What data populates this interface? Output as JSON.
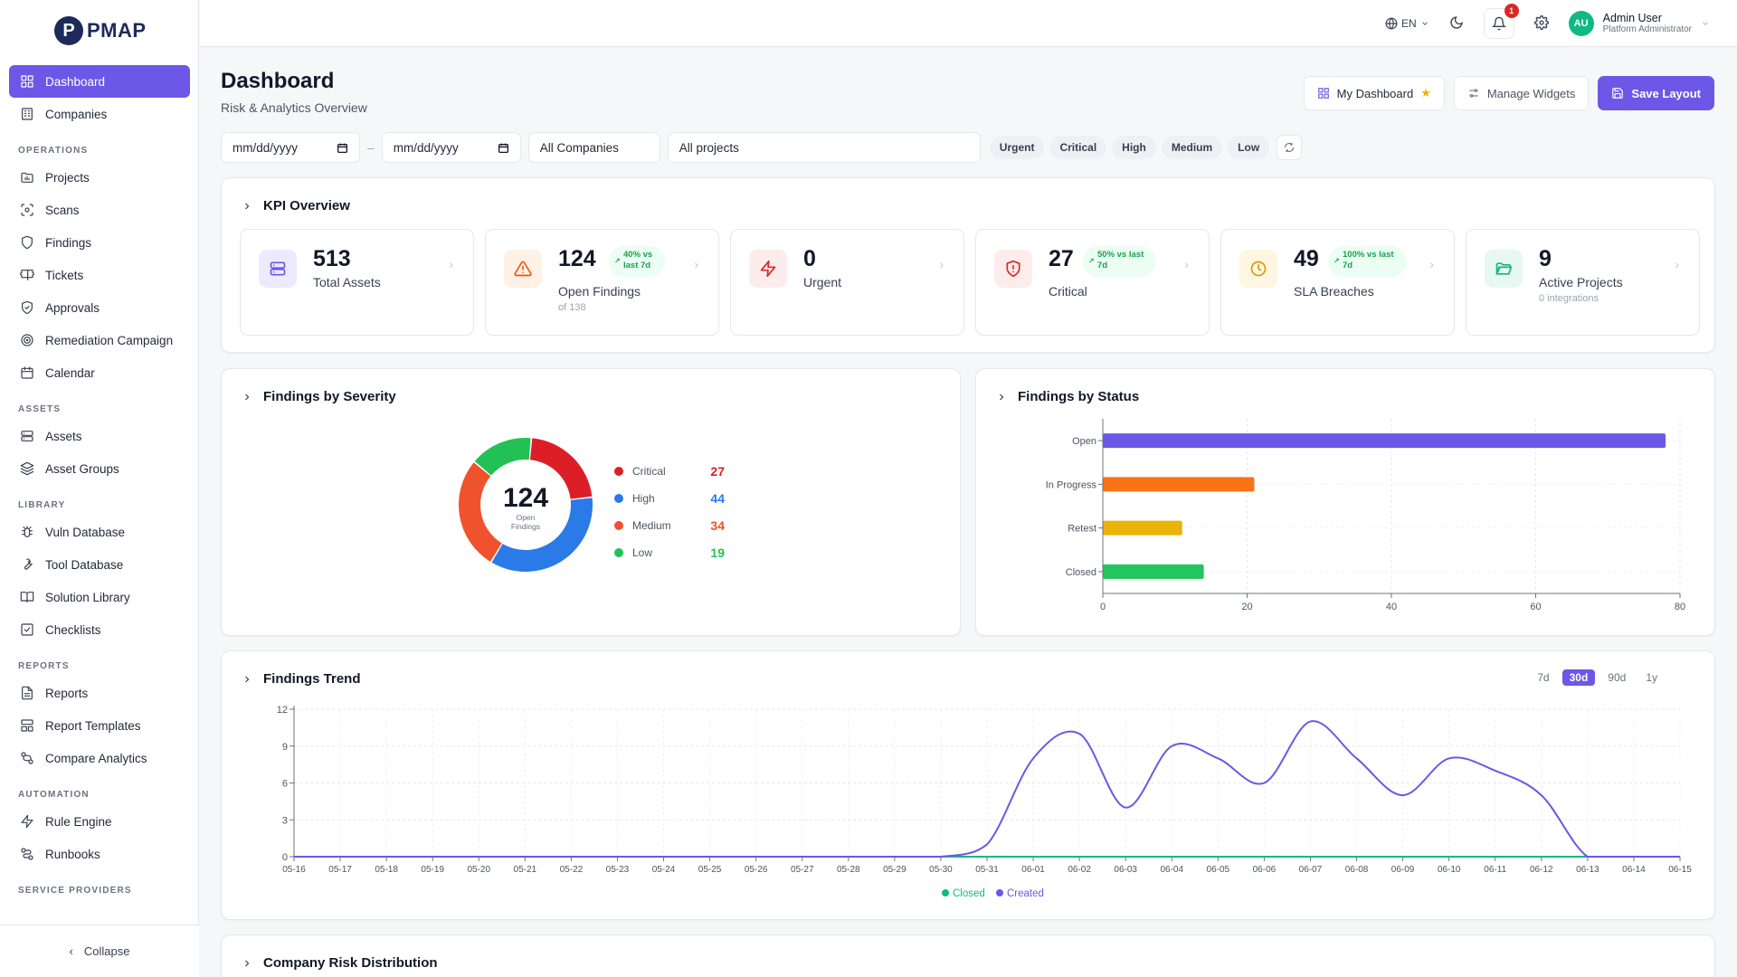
{
  "app": {
    "logo_letter": "P",
    "logo_text": "PMAP"
  },
  "sidebar": {
    "items": [
      {
        "label": "Dashboard",
        "icon": "grid-icon",
        "active": true
      },
      {
        "label": "Companies",
        "icon": "building-icon"
      }
    ],
    "sections": [
      {
        "title": "OPERATIONS",
        "items": [
          {
            "label": "Projects",
            "icon": "folder-chart-icon"
          },
          {
            "label": "Scans",
            "icon": "scan-icon"
          },
          {
            "label": "Findings",
            "icon": "shield-icon"
          },
          {
            "label": "Tickets",
            "icon": "ticket-icon"
          },
          {
            "label": "Approvals",
            "icon": "shield-check-icon"
          },
          {
            "label": "Remediation Campaign",
            "icon": "target-icon"
          },
          {
            "label": "Calendar",
            "icon": "calendar-icon"
          }
        ]
      },
      {
        "title": "ASSETS",
        "items": [
          {
            "label": "Assets",
            "icon": "server-icon"
          },
          {
            "label": "Asset Groups",
            "icon": "layers-icon"
          }
        ]
      },
      {
        "title": "LIBRARY",
        "items": [
          {
            "label": "Vuln Database",
            "icon": "bug-icon"
          },
          {
            "label": "Tool Database",
            "icon": "wrench-icon"
          },
          {
            "label": "Solution Library",
            "icon": "book-icon"
          },
          {
            "label": "Checklists",
            "icon": "checklist-icon"
          }
        ]
      },
      {
        "title": "REPORTS",
        "items": [
          {
            "label": "Reports",
            "icon": "report-icon"
          },
          {
            "label": "Report Templates",
            "icon": "template-icon"
          },
          {
            "label": "Compare Analytics",
            "icon": "compare-icon"
          }
        ]
      },
      {
        "title": "AUTOMATION",
        "items": [
          {
            "label": "Rule Engine",
            "icon": "bolt-icon"
          },
          {
            "label": "Runbooks",
            "icon": "workflow-icon"
          }
        ]
      },
      {
        "title": "SERVICE PROVIDERS",
        "items": []
      }
    ],
    "collapse_label": "Collapse"
  },
  "topbar": {
    "language": "EN",
    "notification_count": "1",
    "user_initials": "AU",
    "user_name": "Admin User",
    "user_role": "Platform Administrator"
  },
  "header": {
    "title": "Dashboard",
    "subtitle": "Risk & Analytics Overview",
    "buttons": {
      "my_dashboard": "My Dashboard",
      "manage_widgets": "Manage Widgets",
      "save_layout": "Save Layout"
    }
  },
  "filters": {
    "date_from": "mm/dd/yyyy",
    "date_to": "mm/dd/yyyy",
    "company": "All Companies",
    "project": "All projects",
    "severity_chips": [
      "Urgent",
      "Critical",
      "High",
      "Medium",
      "Low"
    ]
  },
  "kpi": {
    "title": "KPI Overview",
    "cards": [
      {
        "value": "513",
        "label": "Total Assets",
        "sub": "",
        "trend": "",
        "icon": "server-icon",
        "icon_bg": "#eeeafd",
        "icon_color": "#6d57e6"
      },
      {
        "value": "124",
        "label": "Open Findings",
        "sub": "of 138",
        "trend": "40% vs last 7d",
        "trend_l1": "40% vs",
        "trend_l2": "last 7d",
        "icon": "warning-icon",
        "icon_bg": "#fff1e6",
        "icon_color": "#ea580c"
      },
      {
        "value": "0",
        "label": "Urgent",
        "sub": "",
        "trend": "",
        "icon": "bolt-icon",
        "icon_bg": "#fdecec",
        "icon_color": "#dc2626"
      },
      {
        "value": "27",
        "label": "Critical",
        "sub": "",
        "trend": "50% vs last 7d",
        "trend_l1": "50% vs last",
        "trend_l2": "7d",
        "icon": "shield-alert-icon",
        "icon_bg": "#fdecec",
        "icon_color": "#dc2626"
      },
      {
        "value": "49",
        "label": "SLA Breaches",
        "sub": "",
        "trend": "100% vs last 7d",
        "trend_l1": "100% vs last",
        "trend_l2": "7d",
        "icon": "clock-icon",
        "icon_bg": "#fef6e1",
        "icon_color": "#d99a06"
      },
      {
        "value": "9",
        "label": "Active Projects",
        "sub": "0 integrations",
        "trend": "",
        "icon": "folder-open-icon",
        "icon_bg": "#e6f8f1",
        "icon_color": "#10b981"
      }
    ]
  },
  "severity": {
    "title": "Findings by Severity",
    "center_value": "124",
    "center_label_1": "Open",
    "center_label_2": "Findings",
    "items": [
      {
        "label": "Critical",
        "value": 27,
        "color": "#dc1f26"
      },
      {
        "label": "High",
        "value": 44,
        "color": "#2a7ae8"
      },
      {
        "label": "Medium",
        "value": 34,
        "color": "#f0522d"
      },
      {
        "label": "Low",
        "value": 19,
        "color": "#22c155"
      }
    ]
  },
  "chart_data": [
    {
      "type": "bar",
      "title": "Findings by Status",
      "orientation": "horizontal",
      "categories": [
        "Open",
        "In Progress",
        "Retest",
        "Closed"
      ],
      "values": [
        78,
        21,
        11,
        14
      ],
      "colors": [
        "#6d57e6",
        "#f97316",
        "#eab308",
        "#22c55e"
      ],
      "xlim": [
        0,
        80
      ],
      "xticks": [
        0,
        20,
        40,
        60,
        80
      ],
      "grid": true
    },
    {
      "type": "line",
      "title": "Findings Trend",
      "x": [
        "05-16",
        "05-17",
        "05-18",
        "05-19",
        "05-20",
        "05-21",
        "05-22",
        "05-23",
        "05-24",
        "05-25",
        "05-26",
        "05-27",
        "05-28",
        "05-29",
        "05-30",
        "05-31",
        "06-01",
        "06-02",
        "06-03",
        "06-04",
        "06-05",
        "06-06",
        "06-07",
        "06-08",
        "06-09",
        "06-10",
        "06-11",
        "06-12",
        "06-13",
        "06-14",
        "06-15"
      ],
      "series": [
        {
          "name": "Closed",
          "color": "#10b981",
          "values": [
            0,
            0,
            0,
            0,
            0,
            0,
            0,
            0,
            0,
            0,
            0,
            0,
            0,
            0,
            0,
            0,
            0,
            0,
            0,
            0,
            0,
            0,
            0,
            0,
            0,
            0,
            0,
            0,
            0,
            0,
            0
          ]
        },
        {
          "name": "Created",
          "color": "#6d57e6",
          "values": [
            0,
            0,
            0,
            0,
            0,
            0,
            0,
            0,
            0,
            0,
            0,
            0,
            0,
            0,
            0,
            1,
            8,
            10,
            4,
            9,
            8,
            6,
            11,
            8,
            5,
            8,
            7,
            5,
            0,
            0,
            0
          ]
        }
      ],
      "ylim": [
        0,
        12
      ],
      "yticks": [
        0,
        3,
        6,
        9,
        12
      ],
      "grid": true,
      "legend": "bottom",
      "ranges": [
        "7d",
        "30d",
        "90d",
        "1y"
      ],
      "active_range": "30d"
    }
  ],
  "company_risk": {
    "title": "Company Risk Distribution"
  }
}
